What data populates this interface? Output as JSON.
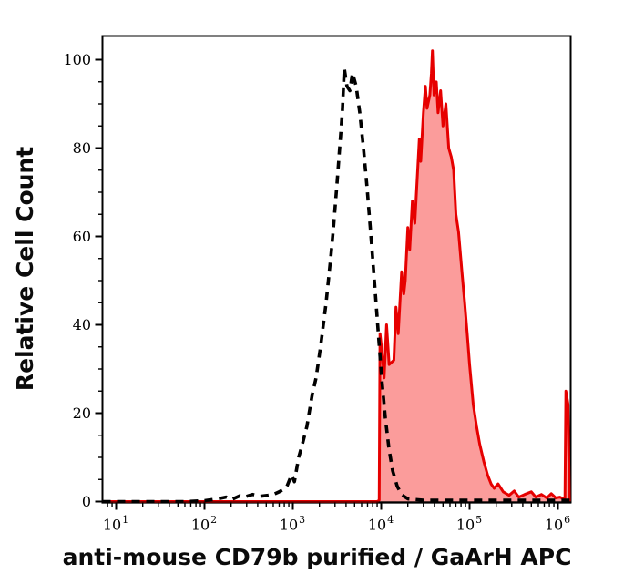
{
  "figure": {
    "background": "#ffffff",
    "kind": "flow cytometry histogram"
  },
  "axes": {
    "x": {
      "label": "anti-mouse CD79b purified / GaArH APC",
      "scale": "log",
      "tick_base": "10",
      "tick_exponents": [
        "1",
        "2",
        "3",
        "4",
        "5",
        "6"
      ]
    },
    "y": {
      "label": "Relative Cell Count",
      "tick_labels": [
        "0",
        "20",
        "40",
        "60",
        "80",
        "100"
      ],
      "major_step": 20,
      "minor_step": 5
    }
  },
  "colors": {
    "positive_line": "#e60000",
    "positive_fill": "#fb9c9b",
    "control_line": "#000000",
    "axis": "#000000",
    "baseline_overlap": "#8b0000"
  },
  "chart_data": {
    "type": "line",
    "title": "",
    "xlabel": "anti-mouse CD79b purified / GaArH APC",
    "ylabel": "Relative Cell Count",
    "x_scale": "log",
    "xlim": [
      7,
      1400000
    ],
    "ylim": [
      0,
      105
    ],
    "grid": false,
    "legend": "none",
    "series": [
      {
        "id": "control",
        "description": "unstained control, dashed black outline",
        "style": "dashed",
        "color": "#000000",
        "fill": "none",
        "points": [
          [
            7,
            0
          ],
          [
            60,
            0
          ],
          [
            100,
            0.2
          ],
          [
            140,
            0.6
          ],
          [
            175,
            1.0
          ],
          [
            205,
            0.5
          ],
          [
            250,
            1.3
          ],
          [
            281,
            1.0
          ],
          [
            350,
            1.6
          ],
          [
            430,
            1.2
          ],
          [
            520,
            1.4
          ],
          [
            600,
            1.6
          ],
          [
            700,
            2.2
          ],
          [
            760,
            2.6
          ],
          [
            860,
            3.5
          ],
          [
            965,
            6
          ],
          [
            1040,
            4.5
          ],
          [
            1165,
            10
          ],
          [
            1300,
            13.5
          ],
          [
            1440,
            17
          ],
          [
            1650,
            24
          ],
          [
            1830,
            28
          ],
          [
            2060,
            35
          ],
          [
            2380,
            45
          ],
          [
            2680,
            55
          ],
          [
            2880,
            62
          ],
          [
            3160,
            72
          ],
          [
            3390,
            80
          ],
          [
            3630,
            88
          ],
          [
            3820,
            98
          ],
          [
            4100,
            94
          ],
          [
            4420,
            93
          ],
          [
            4730,
            97
          ],
          [
            5200,
            94
          ],
          [
            5730,
            88
          ],
          [
            6290,
            80
          ],
          [
            6920,
            71
          ],
          [
            7600,
            61
          ],
          [
            8370,
            50
          ],
          [
            9200,
            39
          ],
          [
            10110,
            28
          ],
          [
            11130,
            19
          ],
          [
            12240,
            12
          ],
          [
            13460,
            7
          ],
          [
            15140,
            3.5
          ],
          [
            17060,
            1.5
          ],
          [
            20140,
            0.6
          ],
          [
            30000,
            0.3
          ],
          [
            100000,
            0.3
          ],
          [
            400000,
            0.3
          ],
          [
            1360000,
            0.3
          ]
        ]
      },
      {
        "id": "stained",
        "description": "anti-mouse CD79b purified / GaArH APC stained, red filled",
        "style": "solid",
        "color": "#e60000",
        "fill": "#fb9c9b",
        "points": [
          [
            7,
            0
          ],
          [
            1000,
            0
          ],
          [
            5000,
            0
          ],
          [
            9000,
            0
          ],
          [
            9500,
            0.3
          ],
          [
            9700,
            38
          ],
          [
            10200,
            34
          ],
          [
            10800,
            28
          ],
          [
            11500,
            40
          ],
          [
            12300,
            31
          ],
          [
            13900,
            32
          ],
          [
            14700,
            44
          ],
          [
            15600,
            38
          ],
          [
            17000,
            52
          ],
          [
            18000,
            47
          ],
          [
            18700,
            50
          ],
          [
            20000,
            62
          ],
          [
            21000,
            57
          ],
          [
            22500,
            68
          ],
          [
            24000,
            63
          ],
          [
            27000,
            82
          ],
          [
            28000,
            77
          ],
          [
            30000,
            88
          ],
          [
            31600,
            94
          ],
          [
            33000,
            89
          ],
          [
            35500,
            92
          ],
          [
            37000,
            97
          ],
          [
            38000,
            102
          ],
          [
            39500,
            92
          ],
          [
            42000,
            95
          ],
          [
            44000,
            88
          ],
          [
            47000,
            93
          ],
          [
            50000,
            85
          ],
          [
            54000,
            90
          ],
          [
            58000,
            80
          ],
          [
            62000,
            78
          ],
          [
            66000,
            75
          ],
          [
            70000,
            65
          ],
          [
            75000,
            61
          ],
          [
            82000,
            52
          ],
          [
            88000,
            45
          ],
          [
            94000,
            38
          ],
          [
            100000,
            31
          ],
          [
            110000,
            22
          ],
          [
            120000,
            17
          ],
          [
            130000,
            13
          ],
          [
            145000,
            9
          ],
          [
            160000,
            6
          ],
          [
            175000,
            4
          ],
          [
            190000,
            3
          ],
          [
            210000,
            4
          ],
          [
            240000,
            2.2
          ],
          [
            280000,
            1.4
          ],
          [
            320000,
            2.4
          ],
          [
            360000,
            1
          ],
          [
            420000,
            1.6
          ],
          [
            500000,
            2.2
          ],
          [
            560000,
            1
          ],
          [
            650000,
            1.6
          ],
          [
            750000,
            0.8
          ],
          [
            840000,
            1.8
          ],
          [
            950000,
            0.8
          ],
          [
            1050000,
            1
          ],
          [
            1150000,
            0.6
          ],
          [
            1200000,
            0.8
          ],
          [
            1230000,
            25
          ],
          [
            1300000,
            22
          ],
          [
            1350000,
            0
          ]
        ]
      }
    ]
  }
}
